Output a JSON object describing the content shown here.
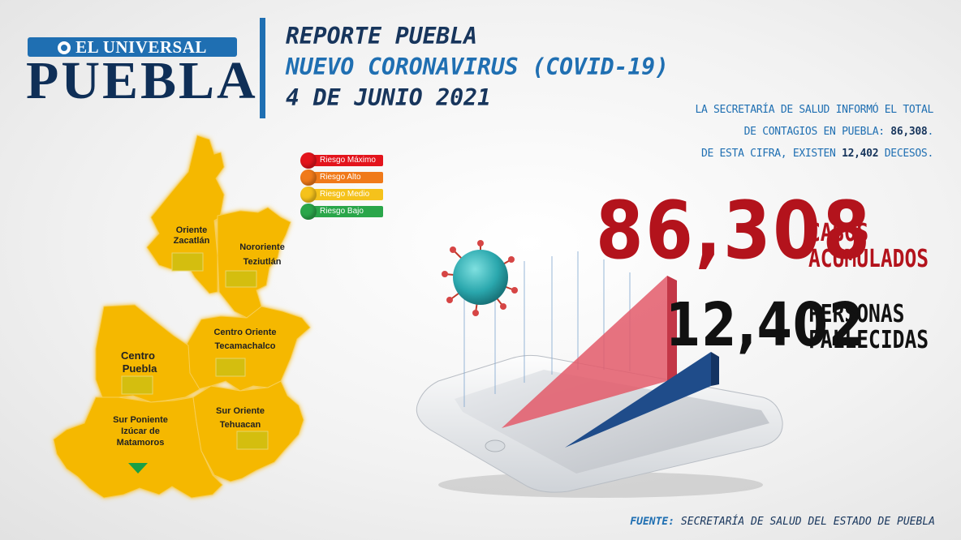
{
  "logo": {
    "top": "EL UNIVERSAL",
    "main": "PUEBLA"
  },
  "header": {
    "line1": "REPORTE PUEBLA",
    "line2": "NUEVO CORONAVIRUS (COVID-19)",
    "line3": "4 DE JUNIO 2021"
  },
  "info": {
    "line1": "LA SECRETARÍA DE SALUD  INFORMÓ EL TOTAL",
    "line2_pre": "DE CONTAGIOS EN PUEBLA: ",
    "line2_num": "86,308",
    "line2_post": ".",
    "line3_pre": "DE ESTA CIFRA, EXISTEN ",
    "line3_num": "12,402",
    "line3_post": " DECESOS."
  },
  "legend": [
    {
      "label": "Riesgo Máximo",
      "color": "#e3141c"
    },
    {
      "label": "Riesgo Alto",
      "color": "#f07a1a"
    },
    {
      "label": "Riesgo Medio",
      "color": "#f5c21b"
    },
    {
      "label": "Riesgo Bajo",
      "color": "#2aa64a"
    }
  ],
  "map": {
    "fill": "#f5b800",
    "regions": [
      {
        "line1": "Oriente",
        "line2": "Zacatlán"
      },
      {
        "line1": "Nororiente",
        "line2": "Teziutlán"
      },
      {
        "line1": "Centro Oriente",
        "line2": "Tecamachalco"
      },
      {
        "line1": "Centro",
        "line2": "Puebla"
      },
      {
        "line1": "Sur Poniente",
        "line2": "Izúcar de",
        "line3": "Matamoros"
      },
      {
        "line1": "Sur Oriente",
        "line2": "Tehuacan"
      }
    ]
  },
  "stats": {
    "cases": {
      "value": "86,308",
      "label1": "CASOS",
      "label2": "ACUMULADOS"
    },
    "deaths": {
      "value": "12,402",
      "label1": "PERSONAS",
      "label2": "FALLECIDAS"
    }
  },
  "source": {
    "prefix": "FUENTE:",
    "text": " SECRETARÍA DE SALUD DEL ESTADO DE PUEBLA"
  },
  "colors": {
    "blue": "#1f6fb2",
    "navy": "#17355c",
    "red": "#b3131c"
  }
}
